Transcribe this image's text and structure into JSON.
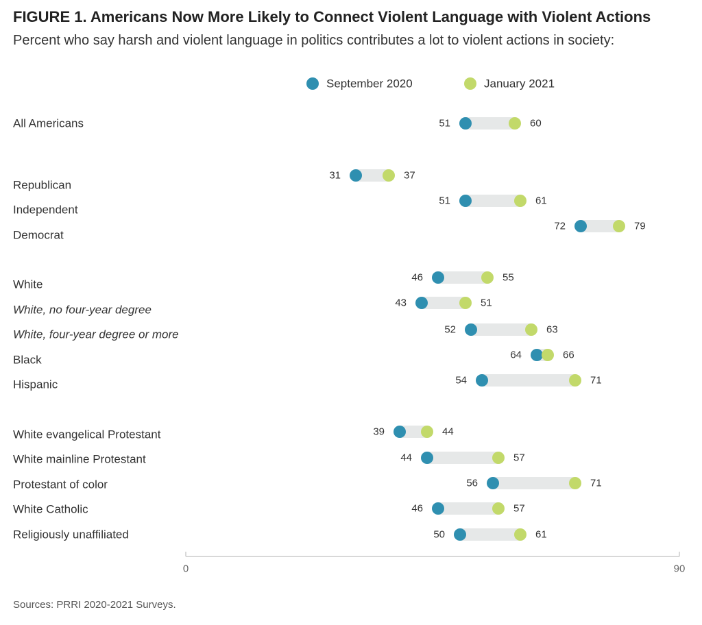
{
  "title": "FIGURE 1.  Americans Now More Likely to Connect Violent Language with Violent Actions",
  "subtitle": "Percent who say harsh and violent language in politics contributes a lot to violent actions in society:",
  "source": "Sources: PRRI 2020-2021 Surveys.",
  "colors": {
    "september_2020": "#2f8fb0",
    "january_2021": "#c2d96a",
    "bar": "#e6e8e8",
    "axis": "#cccccc"
  },
  "chart_data": {
    "type": "dumbbell",
    "xlim": [
      0,
      90
    ],
    "x_ticks": [
      "0",
      "90"
    ],
    "legend": [
      {
        "key": "september_2020",
        "label": "September 2020"
      },
      {
        "key": "january_2021",
        "label": "January 2021"
      }
    ],
    "rows": [
      {
        "label": "All Americans",
        "italic": false,
        "september_2020": 51,
        "january_2021": 60
      },
      {
        "label": "Republican",
        "italic": false,
        "september_2020": 31,
        "january_2021": 37
      },
      {
        "label": "Independent",
        "italic": false,
        "september_2020": 51,
        "january_2021": 61
      },
      {
        "label": "Democrat",
        "italic": false,
        "september_2020": 72,
        "january_2021": 79
      },
      {
        "label": "White",
        "italic": false,
        "september_2020": 46,
        "january_2021": 55
      },
      {
        "label": "White, no four-year degree",
        "italic": true,
        "september_2020": 43,
        "january_2021": 51
      },
      {
        "label": "White, four-year degree or more",
        "italic": true,
        "september_2020": 52,
        "january_2021": 63
      },
      {
        "label": "Black",
        "italic": false,
        "september_2020": 64,
        "january_2021": 66
      },
      {
        "label": "Hispanic",
        "italic": false,
        "september_2020": 54,
        "january_2021": 71
      },
      {
        "label": "White evangelical Protestant",
        "italic": false,
        "september_2020": 39,
        "january_2021": 44
      },
      {
        "label": "White mainline Protestant",
        "italic": false,
        "september_2020": 44,
        "january_2021": 57
      },
      {
        "label": "Protestant of color",
        "italic": false,
        "september_2020": 56,
        "january_2021": 71
      },
      {
        "label": "White Catholic",
        "italic": false,
        "september_2020": 46,
        "january_2021": 57
      },
      {
        "label": "Religiously unaffiliated",
        "italic": false,
        "september_2020": 50,
        "january_2021": 61
      }
    ]
  }
}
